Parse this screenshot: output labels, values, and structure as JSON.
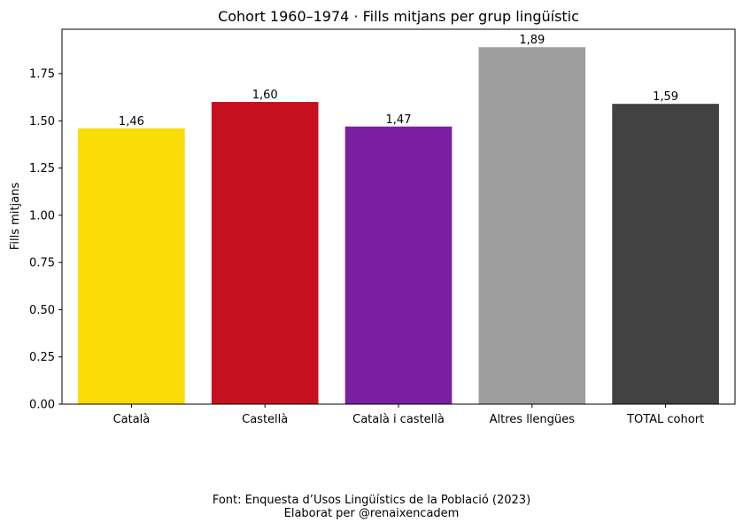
{
  "chart_data": {
    "type": "bar",
    "title": "Cohort 1960–1974 · Fills mitjans per grup lingüístic",
    "xlabel": "",
    "ylabel": "Fills mitjans",
    "ylim": [
      0,
      1.985
    ],
    "yticks": [
      0,
      0.25,
      0.5,
      0.75,
      1,
      1.25,
      1.5,
      1.75
    ],
    "ytick_labels": [
      "0.00",
      "0.25",
      "0.50",
      "0.75",
      "1.00",
      "1.25",
      "1.50",
      "1.75"
    ],
    "grid": false,
    "legend": "none",
    "categories": [
      "Català",
      "Castellà",
      "Català i castellà",
      "Altres llengües",
      "TOTAL cohort"
    ],
    "values": [
      1.46,
      1.6,
      1.47,
      1.89,
      1.59
    ],
    "value_labels": [
      "1,46",
      "1,60",
      "1,47",
      "1,89",
      "1,59"
    ],
    "colors": [
      "#fadd07",
      "#c60f1f",
      "#7b1fa2",
      "#9e9e9e",
      "#424242"
    ]
  },
  "footer": {
    "source": "Font: Enquesta d’Usos Lingüístics de la Població (2023)",
    "credit": "Elaborat per @renaixencadem"
  }
}
